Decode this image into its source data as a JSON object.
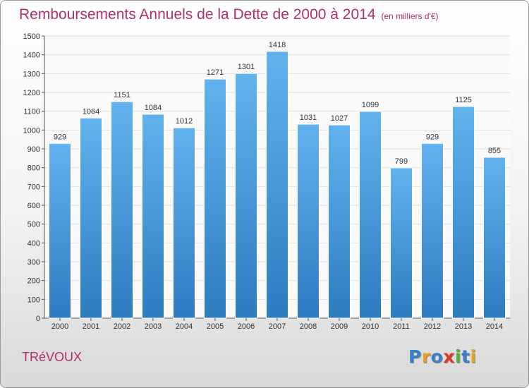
{
  "header": {
    "title": "Remboursements Annuels de la Dette de 2000 à 2014",
    "unit": "(en milliers d'€)"
  },
  "footer": {
    "city": "TRéVOUX",
    "brand_letters": [
      {
        "ch": "P",
        "color": "#3a7fc8"
      },
      {
        "ch": "r",
        "color": "#e8a020"
      },
      {
        "ch": "o",
        "color": "#3a7fc8"
      },
      {
        "ch": "x",
        "color": "#e23a2a"
      },
      {
        "ch": "i",
        "color": "#58b030"
      },
      {
        "ch": "t",
        "color": "#3a7fc8"
      },
      {
        "ch": "i",
        "color": "#e8a020"
      }
    ]
  },
  "colors": {
    "accent": "#b0306b",
    "bar_top": "#62b2ee",
    "bar_bottom": "#2e7cc0",
    "bar_stroke": "#ffffff",
    "grid": "#e0e0e0"
  },
  "chart_data": {
    "type": "bar",
    "title": "Remboursements Annuels de la Dette de 2000 à 2014",
    "subtitle": "(en milliers d'€)",
    "xlabel": "",
    "ylabel": "",
    "categories": [
      "2000",
      "2001",
      "2002",
      "2003",
      "2004",
      "2005",
      "2006",
      "2007",
      "2008",
      "2009",
      "2010",
      "2011",
      "2012",
      "2013",
      "2014"
    ],
    "values": [
      929,
      1064,
      1151,
      1084,
      1012,
      1271,
      1301,
      1418,
      1031,
      1027,
      1099,
      799,
      929,
      1125,
      855
    ],
    "ylim": [
      0,
      1500
    ],
    "yticks": [
      0,
      100,
      200,
      300,
      400,
      500,
      600,
      700,
      800,
      900,
      1000,
      1100,
      1200,
      1300,
      1400,
      1500
    ],
    "grid": true,
    "data_labels": true,
    "legend": "none"
  }
}
